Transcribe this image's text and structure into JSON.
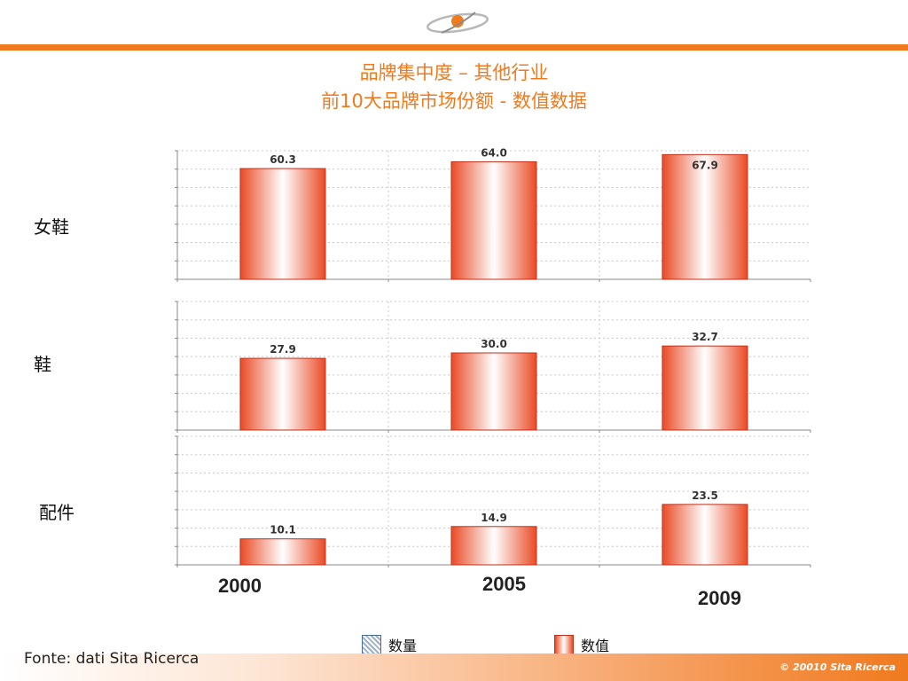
{
  "title_line1": "品牌集中度 – 其他行业",
  "title_line2": "前10大品牌市场份额 - 数值数据",
  "colors": {
    "accent": "#f07a1e",
    "bar_edge": "#ea4a25",
    "bar_center": "#ffffff",
    "qty_swatch": "#9ab0cc"
  },
  "legend": [
    {
      "label": "数量",
      "swatch": "hatched-blue"
    },
    {
      "label": "数值",
      "swatch": "red-gradient"
    }
  ],
  "source": "Fonte: dati Sita Ricerca",
  "copyright": "© 20010 Sita Ricerca",
  "chart_data": {
    "type": "bar",
    "categories": [
      "2000",
      "2005",
      "2009"
    ],
    "panels": [
      {
        "label": "女鞋",
        "values": [
          60.3,
          64.0,
          67.9
        ],
        "value_labels": [
          "60.3",
          "64.0",
          "67.9"
        ],
        "ylim": [
          0,
          70
        ]
      },
      {
        "label": "鞋",
        "values": [
          27.9,
          30.0,
          32.7
        ],
        "value_labels": [
          "27.9",
          "30.0",
          "32.7"
        ],
        "ylim": [
          0,
          50
        ]
      },
      {
        "label": "配件",
        "values": [
          10.1,
          14.9,
          23.5
        ],
        "value_labels": [
          "10.1",
          "14.9",
          "23.5"
        ],
        "ylim": [
          0,
          50
        ]
      }
    ],
    "grid": true,
    "legend_position": "bottom"
  }
}
